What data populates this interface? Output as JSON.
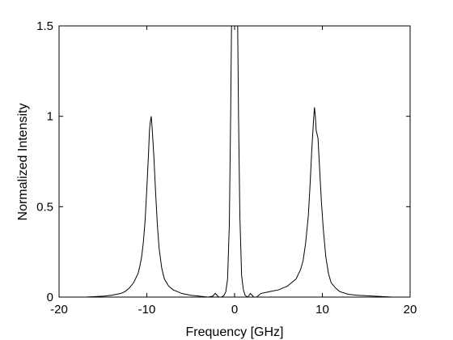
{
  "chart_data": {
    "type": "line",
    "title": "",
    "xlabel": "Frequency [GHz]",
    "ylabel": "Normalized Intensity",
    "xlim": [
      -20,
      20
    ],
    "ylim": [
      0,
      1.5
    ],
    "xticks": [
      -20,
      -10,
      0,
      10,
      20
    ],
    "xtick_labels": [
      "-20",
      "-10",
      "0",
      "10",
      "20"
    ],
    "yticks": [
      0,
      0.5,
      1,
      1.5
    ],
    "ytick_labels": [
      "0",
      "0.5",
      "1",
      "1.5"
    ],
    "grid": false,
    "legend": "none",
    "series": [
      {
        "color": "#000000",
        "x": [
          -19.5,
          -17,
          -15,
          -14,
          -13,
          -12.5,
          -12,
          -11.5,
          -11,
          -10.8,
          -10.6,
          -10.4,
          -10.2,
          -10.0,
          -9.8,
          -9.7,
          -9.6,
          -9.5,
          -9.4,
          -9.2,
          -9.0,
          -8.8,
          -8.6,
          -8.3,
          -8.0,
          -7.5,
          -7.0,
          -6.0,
          -5.0,
          -4.0,
          -3.0,
          -2.5,
          -2.2,
          -1.8,
          -1.5,
          -1.2,
          -1.0,
          -0.8,
          -0.6,
          -0.45,
          -0.35,
          0.0,
          0.35,
          0.45,
          0.6,
          0.8,
          1.0,
          1.2,
          1.5,
          1.8,
          2.2,
          2.5,
          3.0,
          4.0,
          5.0,
          6.0,
          6.5,
          7.0,
          7.5,
          7.8,
          8.1,
          8.4,
          8.6,
          8.8,
          9.0,
          9.1,
          9.2,
          9.3,
          9.5,
          9.7,
          9.9,
          10.1,
          10.4,
          10.7,
          11.0,
          11.5,
          12.0,
          13.0,
          14.0,
          16.0,
          18.0,
          19.5
        ],
        "y": [
          0.0,
          0.0,
          0.005,
          0.01,
          0.02,
          0.03,
          0.05,
          0.08,
          0.13,
          0.17,
          0.22,
          0.3,
          0.42,
          0.6,
          0.8,
          0.92,
          0.97,
          1.0,
          0.94,
          0.78,
          0.58,
          0.4,
          0.27,
          0.16,
          0.1,
          0.06,
          0.04,
          0.02,
          0.01,
          0.005,
          0.0,
          0.005,
          0.02,
          0.0,
          0.0,
          0.01,
          0.03,
          0.1,
          0.4,
          1.0,
          1.5,
          1.5,
          1.5,
          1.0,
          0.45,
          0.12,
          0.04,
          0.01,
          0.0,
          0.02,
          0.0,
          0.0,
          0.02,
          0.03,
          0.04,
          0.06,
          0.08,
          0.1,
          0.15,
          0.2,
          0.3,
          0.45,
          0.62,
          0.82,
          0.98,
          1.05,
          1.0,
          0.92,
          0.88,
          0.7,
          0.52,
          0.38,
          0.22,
          0.13,
          0.08,
          0.05,
          0.03,
          0.015,
          0.01,
          0.005,
          0.0,
          0.0
        ]
      }
    ]
  }
}
